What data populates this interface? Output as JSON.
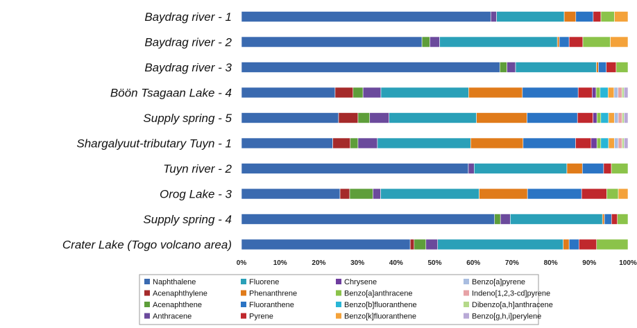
{
  "chart_data": {
    "type": "bar",
    "orientation": "horizontal",
    "stacked": true,
    "percent": true,
    "title": "",
    "xlabel": "",
    "ylabel": "",
    "xlim": [
      0,
      100
    ],
    "x_ticks": [
      "0%",
      "10%",
      "20%",
      "30%",
      "40%",
      "50%",
      "60%",
      "70%",
      "80%",
      "90%",
      "100%"
    ],
    "grid": false,
    "legend_position": "bottom",
    "categories": [
      "Baydrag river - 1",
      "Baydrag river - 2",
      "Baydrag river - 3",
      "Böön Tsagaan Lake - 4",
      "Supply spring - 5",
      "Shargalyuut-tributary Tuyn - 1",
      "Tuyn river -  2",
      "Orog Lake - 3",
      "Supply spring  - 4",
      "Crater Lake (Togo volcano area)"
    ],
    "series": [
      {
        "name": "Naphthalene",
        "color": "#3A6AB0",
        "values": [
          64.5,
          46.0,
          65.5,
          23.5,
          25.0,
          23.5,
          58.7,
          25.5,
          64.5,
          43.0
        ]
      },
      {
        "name": "Acenaphthylene",
        "color": "#A52A2A",
        "values": [
          0,
          0,
          0,
          4.5,
          5.0,
          4.5,
          0,
          2.5,
          0,
          1.0
        ]
      },
      {
        "name": "Acenaphthene",
        "color": "#5E9E3A",
        "values": [
          0,
          2.0,
          1.8,
          2.5,
          3.0,
          2.0,
          0,
          6.0,
          1.5,
          3.0
        ]
      },
      {
        "name": "Anthracene",
        "color": "#6B4A9C",
        "values": [
          1.5,
          2.5,
          2.2,
          4.5,
          5.0,
          5.0,
          1.5,
          2.0,
          2.5,
          3.0
        ]
      },
      {
        "name": "Fluorene",
        "color": "#2AA0B8",
        "values": [
          17.5,
          30.0,
          20.5,
          22.0,
          22.5,
          24.0,
          24.0,
          25.5,
          23.5,
          32.0
        ]
      },
      {
        "name": "Phenanthrene",
        "color": "#E07B1A",
        "values": [
          3.0,
          0.5,
          0.5,
          13.5,
          13.0,
          13.5,
          4.0,
          12.5,
          0.5,
          1.5
        ]
      },
      {
        "name": "Fluoranthene",
        "color": "#2B74C4",
        "values": [
          4.5,
          2.5,
          2.0,
          14.0,
          13.0,
          13.5,
          5.5,
          14.0,
          1.8,
          2.5
        ]
      },
      {
        "name": "Pyrene",
        "color": "#C0282D",
        "values": [
          2.0,
          3.5,
          2.5,
          3.5,
          4.0,
          4.0,
          2.0,
          6.5,
          1.5,
          4.5
        ]
      },
      {
        "name": "Chrysene",
        "color": "#6E3D9E",
        "values": [
          0,
          0,
          0,
          1.0,
          1.0,
          1.5,
          0,
          0,
          0,
          0
        ]
      },
      {
        "name": "Benzo[a]anthracene",
        "color": "#8BC34A",
        "values": [
          3.5,
          7.0,
          3.0,
          1.0,
          1.0,
          1.0,
          4.3,
          3.0,
          2.7,
          8.0
        ]
      },
      {
        "name": "Benzo[b]fluoranthene",
        "color": "#29B6D6",
        "values": [
          0,
          0,
          0,
          2.0,
          2.0,
          2.0,
          0,
          0,
          0,
          0
        ]
      },
      {
        "name": "Benzo[k]fluoranthene",
        "color": "#F4A23A",
        "values": [
          3.5,
          4.5,
          0,
          1.5,
          1.5,
          1.5,
          0,
          2.5,
          0,
          0
        ]
      },
      {
        "name": "Benzo[a]pyrene",
        "color": "#A9BDE0",
        "values": [
          0,
          0,
          0,
          1.0,
          1.0,
          1.0,
          0,
          0,
          0,
          0
        ]
      },
      {
        "name": "Indeno[1,2,3-cd]pyrene",
        "color": "#E7A2A6",
        "values": [
          0,
          0,
          0,
          1.0,
          1.0,
          1.0,
          0,
          0,
          0,
          0
        ]
      },
      {
        "name": "Dibenzo[a,h]anthracene",
        "color": "#B5D98A",
        "values": [
          0,
          0,
          0,
          0.5,
          0.5,
          0.5,
          0,
          0,
          0,
          0
        ]
      },
      {
        "name": "Benzo[g,h,i]perylene",
        "color": "#B9A9D6",
        "values": [
          0,
          0,
          0,
          1.0,
          1.0,
          1.0,
          0,
          0,
          0,
          0
        ]
      }
    ]
  }
}
